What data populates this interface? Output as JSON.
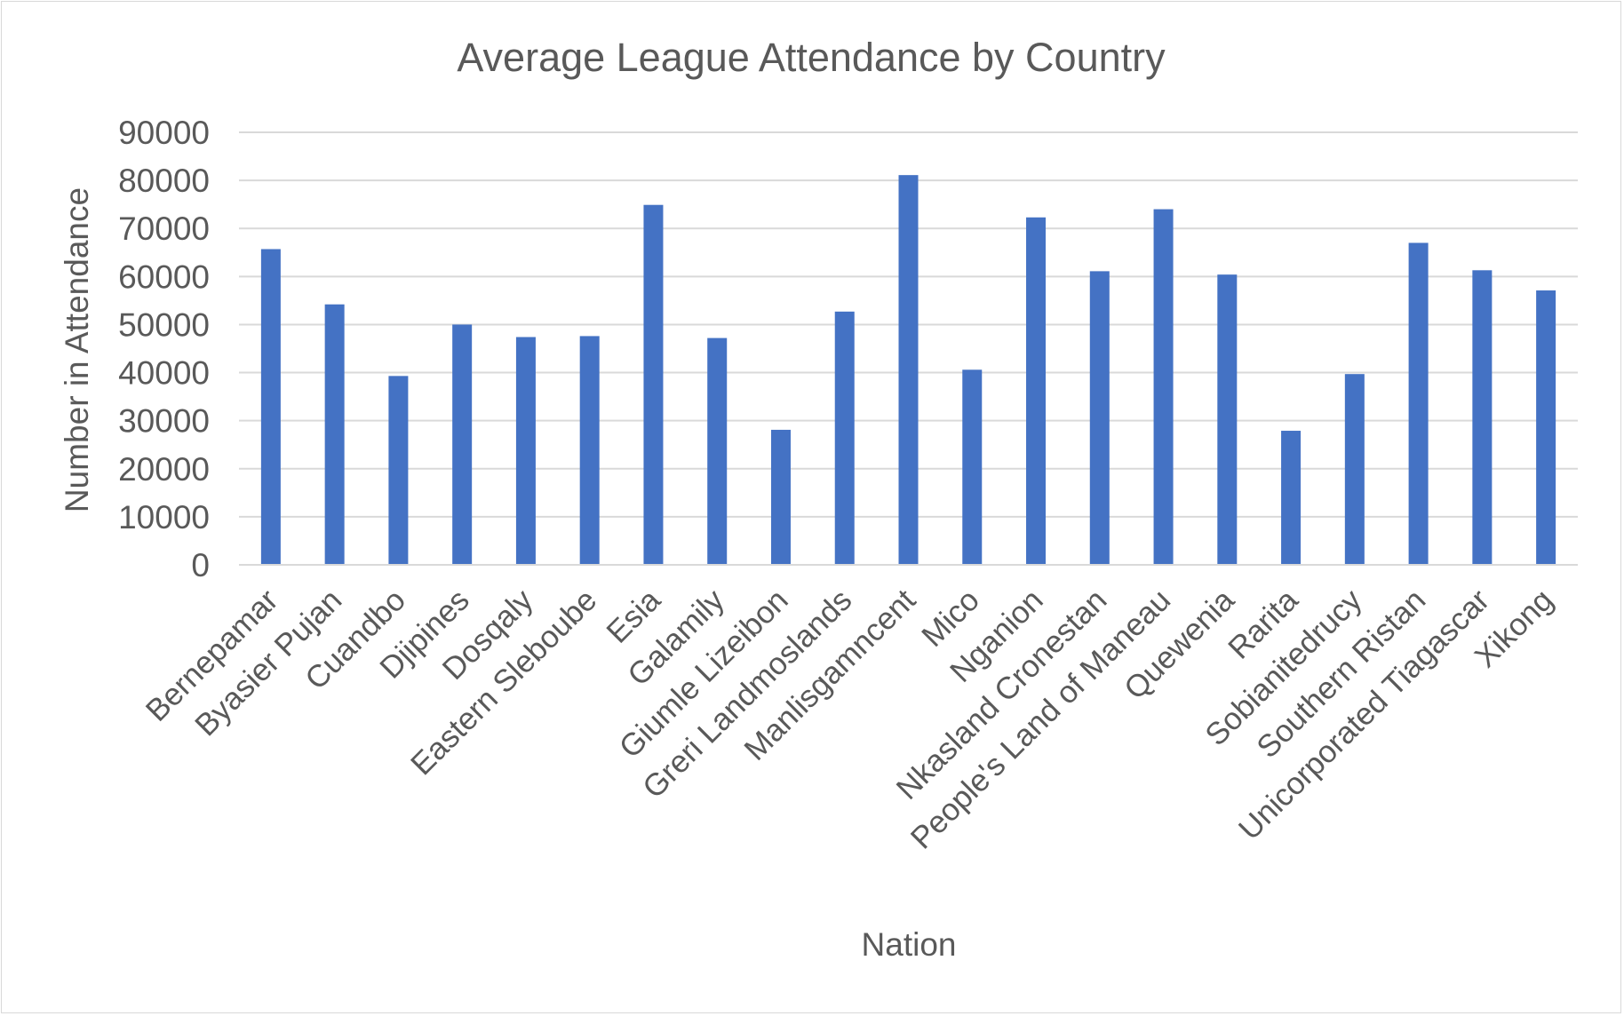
{
  "chart_data": {
    "type": "bar",
    "title": "Average League Attendance by Country",
    "xlabel": "Nation",
    "ylabel": "Number in Attendance",
    "ylim": [
      0,
      90000
    ],
    "yticks": [
      0,
      10000,
      20000,
      30000,
      40000,
      50000,
      60000,
      70000,
      80000,
      90000
    ],
    "grid": true,
    "legend": "none",
    "bar_color": "#4472c4",
    "categories": [
      "Bernepamar",
      "Byasier Pujan",
      "Cuandbo",
      "Djipines",
      "Dosqaly",
      "Eastern Sleboube",
      "Esia",
      "Galamily",
      "Giumle Lizeibon",
      "Greri Landmoslands",
      "Manlisgamncent",
      "Mico",
      "Nganion",
      "Nkasland Cronestan",
      "People's Land of Maneau",
      "Quewenia",
      "Rarita",
      "Sobianitedrucy",
      "Southern Ristan",
      "Unicorporated Tiagascar",
      "Xikong"
    ],
    "values": [
      65700,
      54200,
      39300,
      50000,
      47400,
      47600,
      74900,
      47200,
      28100,
      52700,
      81100,
      40600,
      72300,
      61100,
      74000,
      60400,
      27900,
      39700,
      67000,
      61300,
      57100
    ]
  }
}
